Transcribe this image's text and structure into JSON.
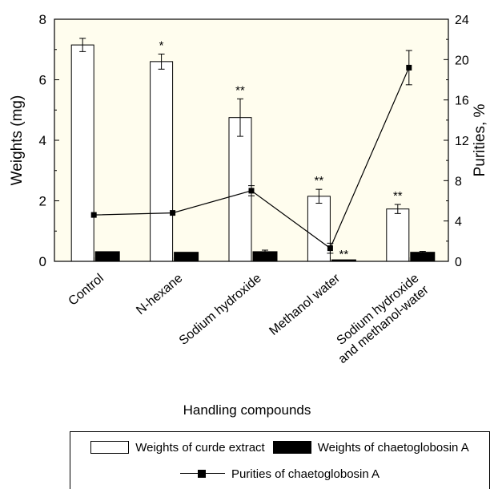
{
  "chart_data": {
    "type": "bar",
    "xlabel": "Handling compounds",
    "ylabel": "Weights (mg)",
    "y2label": "Purities, %",
    "ylim": [
      0,
      8
    ],
    "y2lim": [
      0,
      24
    ],
    "yticks": [
      "0",
      "2",
      "4",
      "6",
      "8"
    ],
    "y2ticks": [
      "0",
      "4",
      "8",
      "12",
      "16",
      "20",
      "24"
    ],
    "categories": [
      "Control",
      "N-hexane",
      "Sodium hydroxide",
      "Methanol water",
      "Sodium hydroxide and methanol-water"
    ],
    "category_lines": [
      [
        "Control"
      ],
      [
        "N-hexane"
      ],
      [
        "Sodium hydroxide"
      ],
      [
        "Methanol water"
      ],
      [
        "Sodium hydroxide",
        "and methanol-water"
      ]
    ],
    "series": [
      {
        "name": "Weights of curde extract",
        "kind": "bar",
        "fill": "#ffffff",
        "values": [
          7.15,
          6.6,
          4.75,
          2.15,
          1.73
        ],
        "errors": [
          0.22,
          0.25,
          0.62,
          0.23,
          0.15
        ],
        "significance": [
          "",
          "*",
          "**",
          "**",
          "**"
        ]
      },
      {
        "name": "Weights of chaetoglobosin A",
        "kind": "bar",
        "fill": "#000000",
        "values": [
          0.32,
          0.3,
          0.32,
          0.05,
          0.3
        ],
        "errors": [
          0,
          0,
          0.05,
          0,
          0.03
        ],
        "significance": [
          "",
          "",
          "",
          "**",
          ""
        ]
      },
      {
        "name": "Purities of chaetoglobosin A",
        "kind": "line",
        "axis": "right",
        "values": [
          4.6,
          4.8,
          7.0,
          1.3,
          19.2
        ],
        "errors": [
          0,
          0,
          0.5,
          0.5,
          1.7
        ]
      }
    ],
    "background": "#fffdee",
    "legend_position": "bottom"
  },
  "legend": {
    "crude": "Weights of curde extract",
    "cga": "Weights of chaetoglobosin A",
    "purity": "Purities of chaetoglobosin A"
  }
}
